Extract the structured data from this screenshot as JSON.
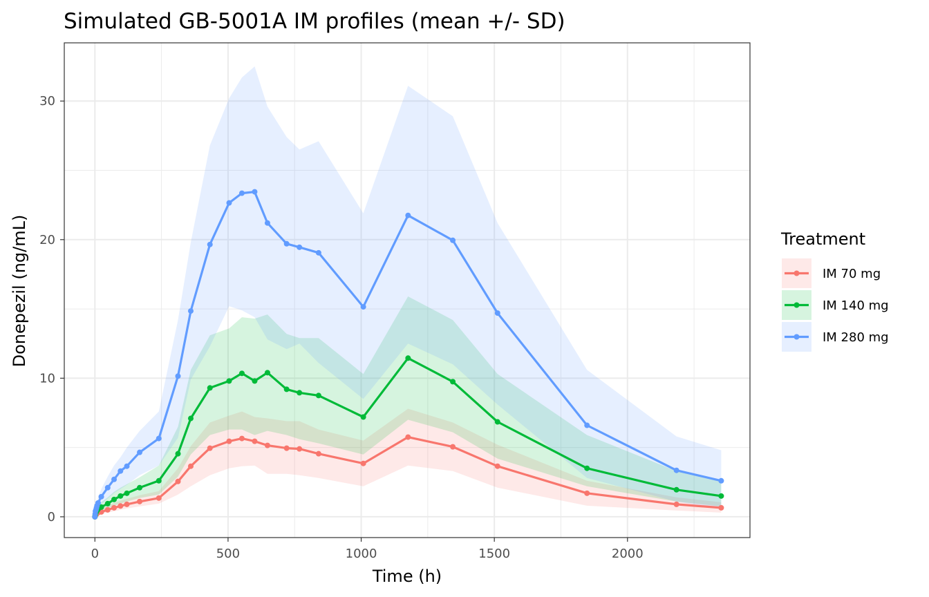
{
  "chart_data": {
    "type": "line",
    "title": "Simulated GB-5001A IM profiles (mean +/- SD)",
    "xlabel": "Time (h)",
    "ylabel": "Donepezil (ng/mL)",
    "xlim": [
      -115,
      2460
    ],
    "ylim": [
      -1.5,
      34.2
    ],
    "x_ticks": [
      0,
      500,
      1000,
      1500,
      2000
    ],
    "y_ticks": [
      0,
      10,
      20,
      30
    ],
    "x_tick_labels": [
      "0",
      "500",
      "1000",
      "1500",
      "2000"
    ],
    "y_tick_labels": [
      "0",
      "10",
      "20",
      "30"
    ],
    "grid": true,
    "legend": {
      "title": "Treatment",
      "position": "right"
    },
    "x": [
      0,
      1,
      2,
      4,
      6,
      8,
      12,
      24,
      48,
      72,
      96,
      120,
      168,
      240,
      312,
      360,
      432,
      504,
      552,
      600,
      648,
      720,
      768,
      840,
      1008,
      1176,
      1344,
      1512,
      1848,
      2184,
      2352
    ],
    "series": [
      {
        "name": "IM 70 mg",
        "color": "#F8766D",
        "mean": [
          0.0,
          0.05,
          0.1,
          0.15,
          0.2,
          0.25,
          0.3,
          0.35,
          0.5,
          0.65,
          0.78,
          0.9,
          1.1,
          1.35,
          2.55,
          3.65,
          4.95,
          5.45,
          5.65,
          5.45,
          5.15,
          4.95,
          4.9,
          4.55,
          3.85,
          5.75,
          5.05,
          3.65,
          1.7,
          0.9,
          0.65
        ],
        "sd_low": [
          0.0,
          0.02,
          0.05,
          0.08,
          0.1,
          0.12,
          0.15,
          0.2,
          0.3,
          0.4,
          0.5,
          0.6,
          0.75,
          0.95,
          1.6,
          2.2,
          3.0,
          3.5,
          3.65,
          3.7,
          3.1,
          3.1,
          3.0,
          2.8,
          2.2,
          3.7,
          3.3,
          2.1,
          0.8,
          0.45,
          0.3
        ],
        "sd_high": [
          0.0,
          0.1,
          0.2,
          0.25,
          0.3,
          0.4,
          0.5,
          0.6,
          0.8,
          1.0,
          1.15,
          1.3,
          1.55,
          1.85,
          3.5,
          5.1,
          6.8,
          7.3,
          7.6,
          7.2,
          7.1,
          6.9,
          6.9,
          6.3,
          5.5,
          7.8,
          6.8,
          5.2,
          2.6,
          1.4,
          1.05
        ]
      },
      {
        "name": "IM 140 mg",
        "color": "#00BA38",
        "mean": [
          0.0,
          0.1,
          0.2,
          0.3,
          0.4,
          0.45,
          0.55,
          0.7,
          0.95,
          1.25,
          1.5,
          1.7,
          2.1,
          2.6,
          4.55,
          7.1,
          9.3,
          9.8,
          10.35,
          9.8,
          10.4,
          9.2,
          8.95,
          8.75,
          7.2,
          11.45,
          9.75,
          6.85,
          3.5,
          1.95,
          1.5
        ],
        "sd_low": [
          0.0,
          0.05,
          0.1,
          0.15,
          0.2,
          0.25,
          0.3,
          0.4,
          0.6,
          0.8,
          0.95,
          1.1,
          1.35,
          1.6,
          2.9,
          4.5,
          5.9,
          6.3,
          6.3,
          5.9,
          6.2,
          5.9,
          5.6,
          5.3,
          4.5,
          7.0,
          6.1,
          4.2,
          2.2,
          1.1,
          0.75
        ],
        "sd_high": [
          0.0,
          0.15,
          0.3,
          0.45,
          0.6,
          0.7,
          0.8,
          1.05,
          1.4,
          1.8,
          2.1,
          2.35,
          2.85,
          3.7,
          6.5,
          10.6,
          13.1,
          13.6,
          14.4,
          14.3,
          14.6,
          13.2,
          12.9,
          12.9,
          10.3,
          15.9,
          14.2,
          10.3,
          5.9,
          3.3,
          2.6
        ]
      },
      {
        "name": "IM 280 mg",
        "color": "#619CFF",
        "mean": [
          0.0,
          0.2,
          0.4,
          0.5,
          0.65,
          0.8,
          1.0,
          1.45,
          2.1,
          2.7,
          3.3,
          3.65,
          4.65,
          5.65,
          10.15,
          14.85,
          19.65,
          22.65,
          23.35,
          23.45,
          21.2,
          19.7,
          19.45,
          19.05,
          15.15,
          21.75,
          19.95,
          14.7,
          6.6,
          3.35,
          2.6
        ],
        "sd_low": [
          0.0,
          0.1,
          0.2,
          0.3,
          0.4,
          0.5,
          0.6,
          0.9,
          1.3,
          1.7,
          2.0,
          2.3,
          3.0,
          3.7,
          5.7,
          9.9,
          12.3,
          15.2,
          14.9,
          14.4,
          12.8,
          12.1,
          12.5,
          11.1,
          8.5,
          12.5,
          11.0,
          8.1,
          2.8,
          1.1,
          0.55
        ],
        "sd_high": [
          0.0,
          0.3,
          0.6,
          0.75,
          0.95,
          1.1,
          1.4,
          2.0,
          2.9,
          3.7,
          4.3,
          5.0,
          6.2,
          7.6,
          14.2,
          19.8,
          26.8,
          30.2,
          31.7,
          32.5,
          29.6,
          27.4,
          26.5,
          27.1,
          21.9,
          31.1,
          28.9,
          21.2,
          10.6,
          5.8,
          4.8
        ]
      }
    ]
  }
}
